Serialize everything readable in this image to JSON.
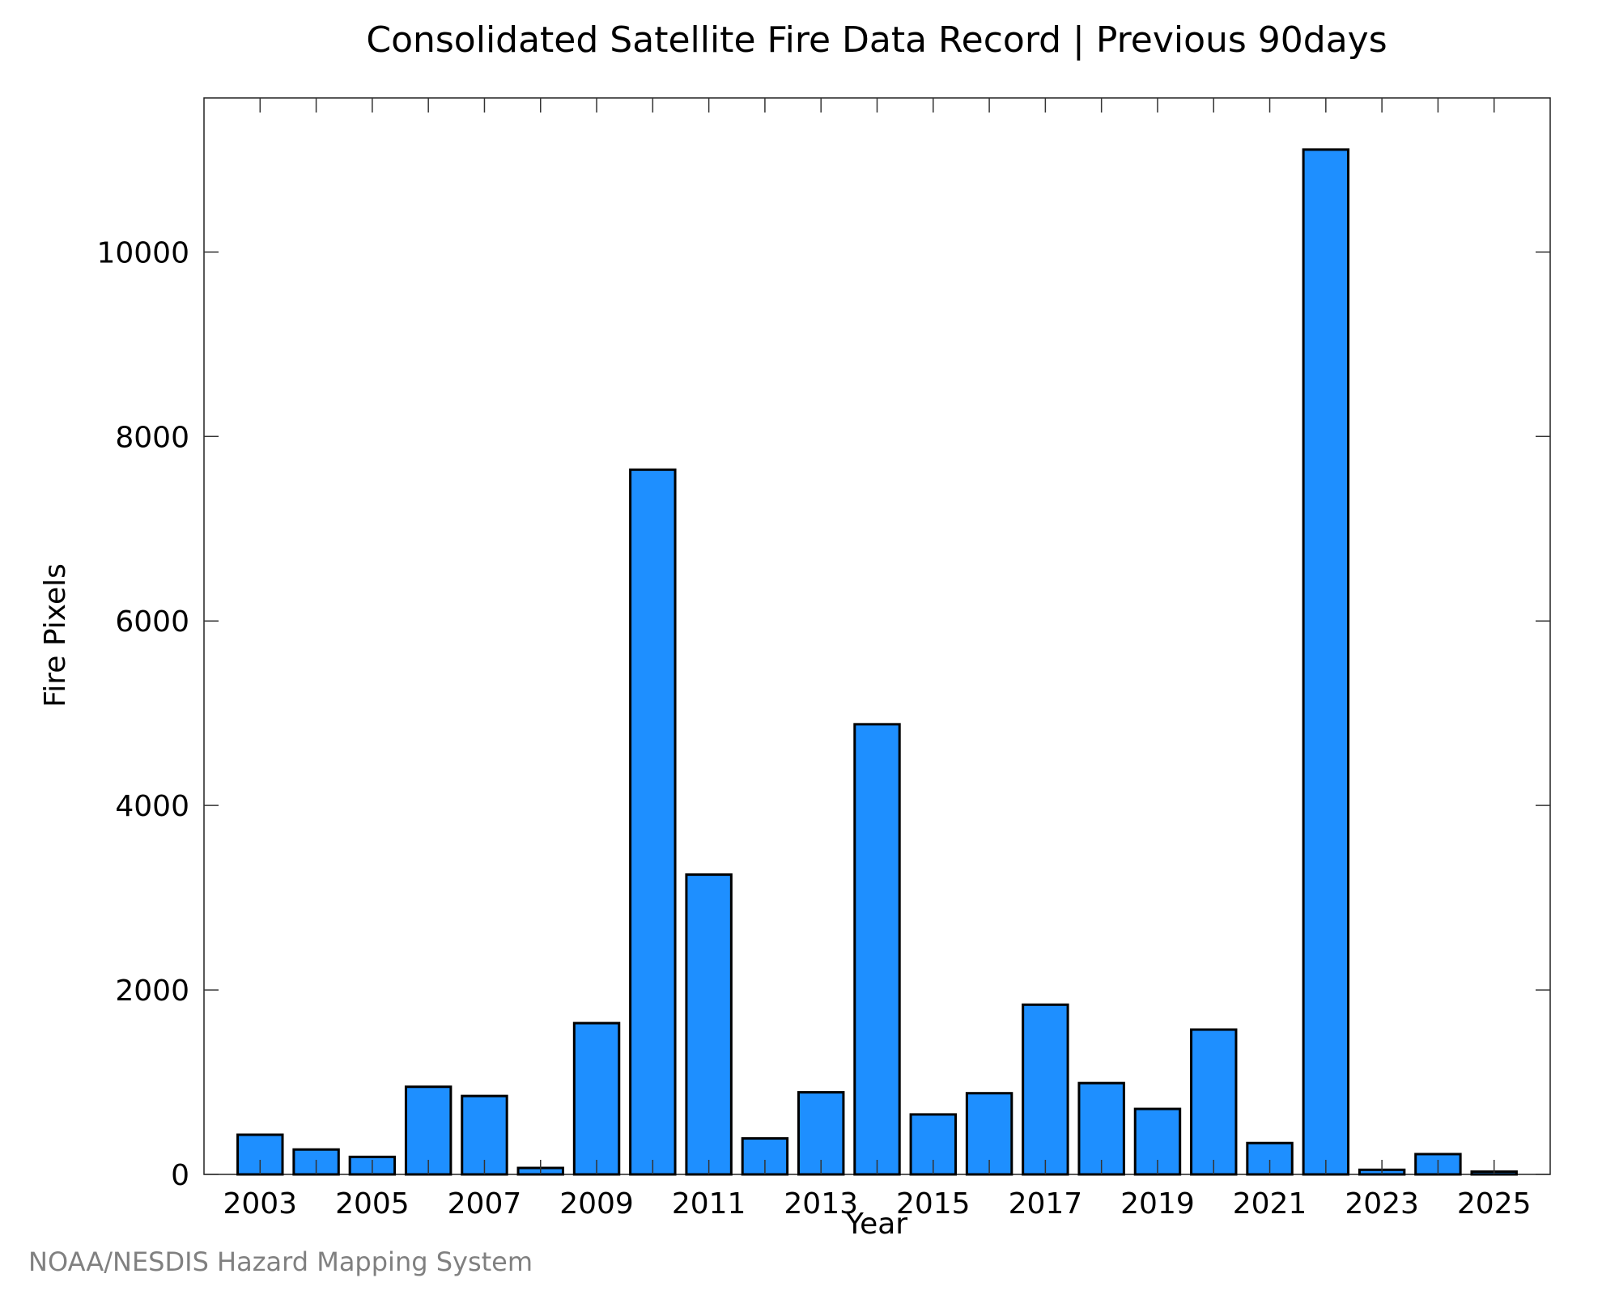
{
  "chart_data": {
    "type": "bar",
    "title": "Consolidated Satellite Fire Data Record | Previous 90days",
    "xlabel": "Year",
    "ylabel": "Fire Pixels",
    "categories": [
      "2003",
      "2004",
      "2005",
      "2006",
      "2007",
      "2008",
      "2009",
      "2010",
      "2011",
      "2012",
      "2013",
      "2014",
      "2015",
      "2016",
      "2017",
      "2018",
      "2019",
      "2020",
      "2021",
      "2022",
      "2023",
      "2024",
      "2025"
    ],
    "values": [
      430,
      270,
      190,
      950,
      850,
      70,
      1640,
      7640,
      3250,
      390,
      890,
      4880,
      650,
      880,
      1840,
      990,
      710,
      1570,
      340,
      11110,
      50,
      220,
      30
    ],
    "x_tick_labels": [
      "2003",
      "2005",
      "2007",
      "2009",
      "2011",
      "2013",
      "2015",
      "2017",
      "2019",
      "2021",
      "2023",
      "2025"
    ],
    "y_ticks": [
      0,
      2000,
      4000,
      6000,
      8000,
      10000
    ],
    "y_tick_labels": [
      "0",
      "2000",
      "4000",
      "6000",
      "8000",
      "10000"
    ],
    "xlim": [
      2002,
      2026
    ],
    "ylim": [
      0,
      11670
    ],
    "grid": false,
    "legend": "none",
    "bar_color": "#1e8fff",
    "bar_edge_color": "#000000"
  },
  "footer": {
    "credit": "NOAA/NESDIS Hazard Mapping System"
  }
}
